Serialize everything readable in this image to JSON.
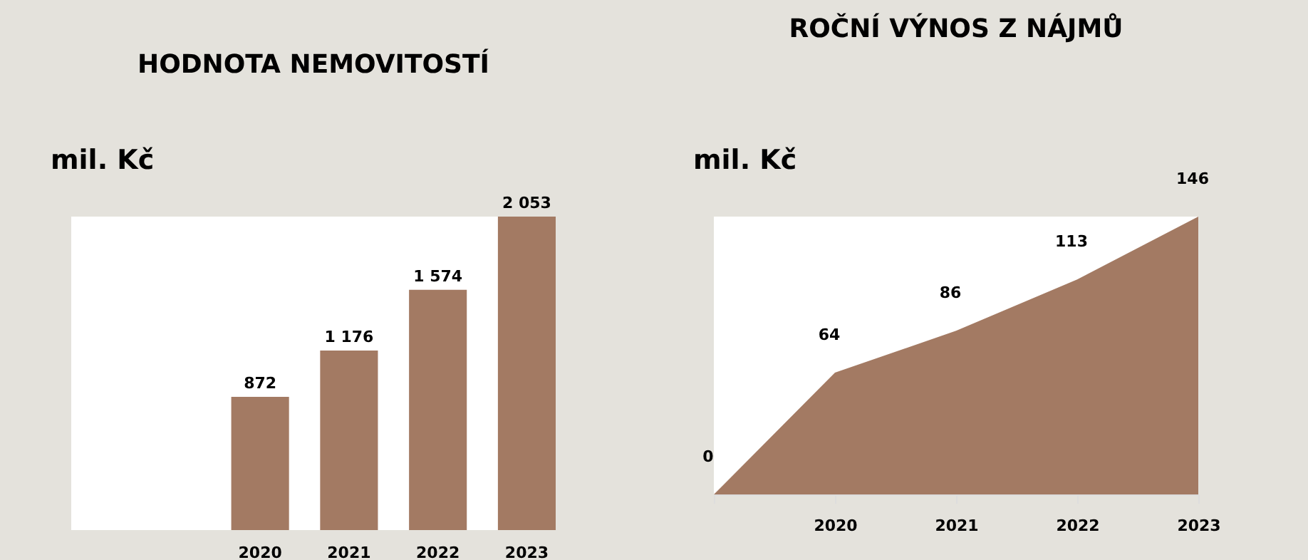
{
  "chart_data": [
    {
      "type": "bar",
      "title": "HODNOTA NEMOVITOSTÍ",
      "ylabel": "mil. Kč",
      "categories": [
        "2020",
        "2021",
        "2022",
        "2023"
      ],
      "values": [
        872,
        1176,
        1574,
        2053
      ],
      "value_labels": [
        "872",
        "1 176",
        "1 574",
        "2 053"
      ],
      "color": "#a37a63"
    },
    {
      "type": "area",
      "title": "ROČNÍ VÝNOS Z NÁJMŮ",
      "ylabel": "mil. Kč",
      "categories": [
        null,
        "2020",
        "2021",
        "2022",
        "2023"
      ],
      "values": [
        0,
        64,
        86,
        113,
        146
      ],
      "data_labels": true,
      "color": "#a37a63"
    }
  ]
}
